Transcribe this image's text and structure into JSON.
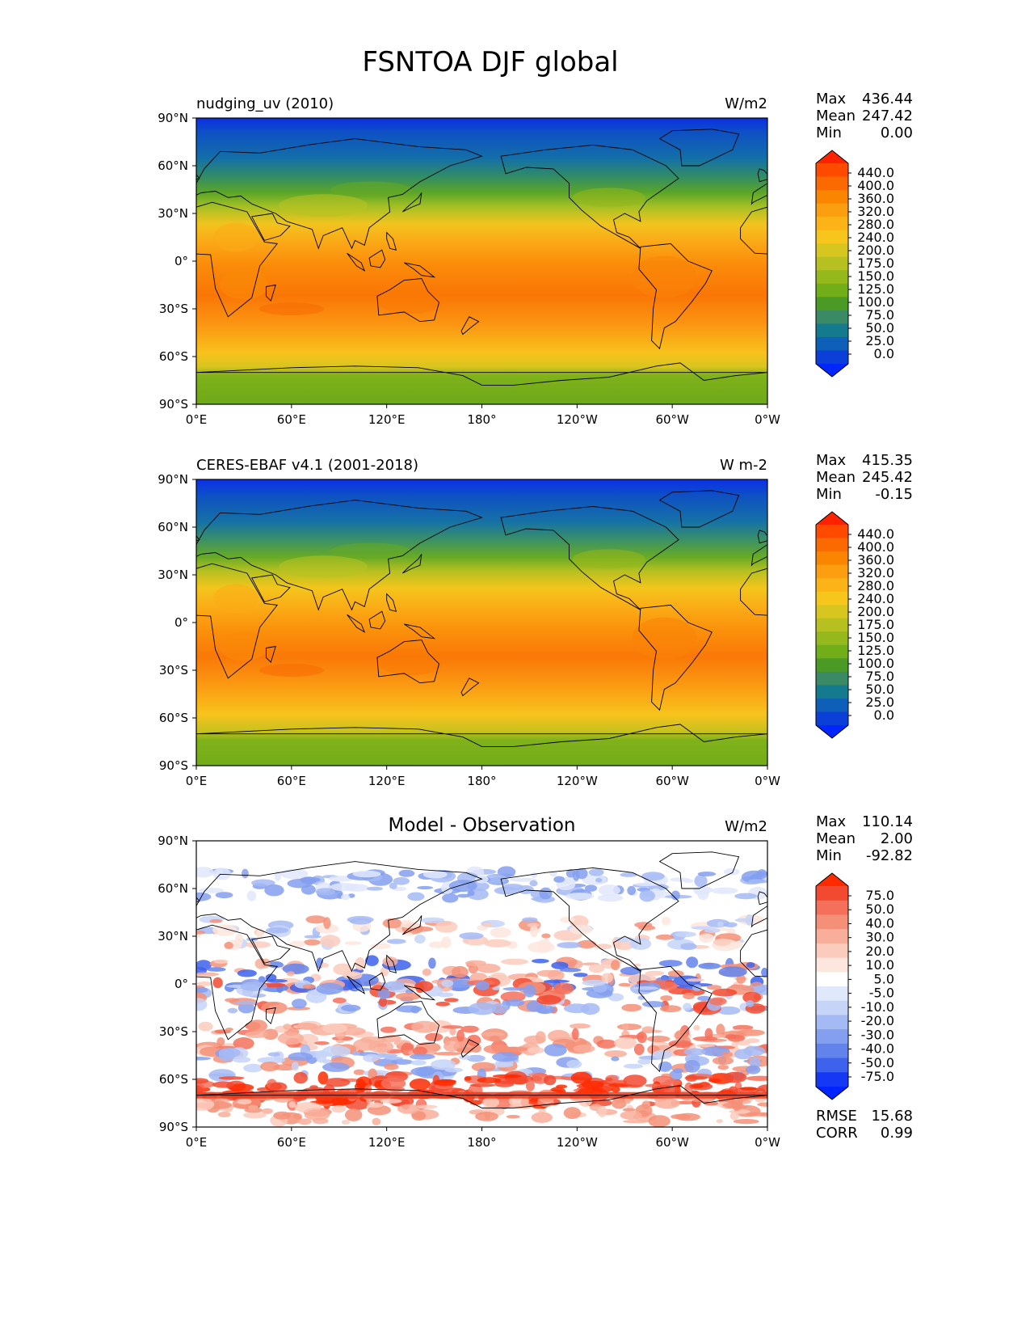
{
  "figure": {
    "title": "FSNTOA DJF global"
  },
  "lat_ticks": [
    "90°N",
    "60°N",
    "30°N",
    "0°",
    "30°S",
    "60°S",
    "90°S"
  ],
  "lon_ticks": [
    "0°E",
    "60°E",
    "120°E",
    "180°",
    "120°W",
    "60°W",
    "0°W"
  ],
  "full_colorbar": {
    "labels": [
      "440.0",
      "400.0",
      "360.0",
      "320.0",
      "280.0",
      "240.0",
      "200.0",
      "175.0",
      "150.0",
      "125.0",
      "100.0",
      "75.0",
      "50.0",
      "25.0",
      "0.0"
    ],
    "colors": [
      "#ff2200",
      "#ff4a00",
      "#fb6a00",
      "#fa8500",
      "#fb9f10",
      "#fcb318",
      "#f7c61c",
      "#d7c620",
      "#b6c020",
      "#95b81c",
      "#72ad1a",
      "#4b9a26",
      "#3a8a66",
      "#147a8e",
      "#0e5fb8",
      "#0a3fd8",
      "#0026ff"
    ]
  },
  "diff_colorbar": {
    "labels": [
      "75.0",
      "50.0",
      "40.0",
      "30.0",
      "20.0",
      "10.0",
      "5.0",
      "-5.0",
      "-10.0",
      "-20.0",
      "-30.0",
      "-40.0",
      "-50.0",
      "-75.0"
    ],
    "colors": [
      "#ff2a00",
      "#f24a30",
      "#f4705a",
      "#f59078",
      "#f8ae9a",
      "#fbcbbd",
      "#fde6dd",
      "#ffffff",
      "#e0e8fb",
      "#c6d4f8",
      "#a4baf4",
      "#849ff0",
      "#6283ec",
      "#3e62ec",
      "#1538f5",
      "#0024ff"
    ]
  },
  "panels": [
    {
      "id": "model",
      "left_title": "nudging_uv (2010)",
      "center_title": "",
      "right_title": "W/m2",
      "stats": [
        {
          "label": "Max",
          "value": "436.44"
        },
        {
          "label": "Mean",
          "value": "247.42"
        },
        {
          "label": "Min",
          "value": "0.00"
        }
      ],
      "bottom_stats": []
    },
    {
      "id": "obs",
      "left_title": "CERES-EBAF v4.1 (2001-2018)",
      "center_title": "",
      "right_title": "W m-2",
      "stats": [
        {
          "label": "Max",
          "value": "415.35"
        },
        {
          "label": "Mean",
          "value": "245.42"
        },
        {
          "label": "Min",
          "value": "-0.15"
        }
      ],
      "bottom_stats": []
    },
    {
      "id": "diff",
      "left_title": "",
      "center_title": "Model - Observation",
      "right_title": "W/m2",
      "stats": [
        {
          "label": "Max",
          "value": "110.14"
        },
        {
          "label": "Mean",
          "value": "2.00"
        },
        {
          "label": "Min",
          "value": "-92.82"
        }
      ],
      "bottom_stats": [
        {
          "label": "RMSE",
          "value": "15.68"
        },
        {
          "label": "CORR",
          "value": "0.99"
        }
      ]
    }
  ]
}
